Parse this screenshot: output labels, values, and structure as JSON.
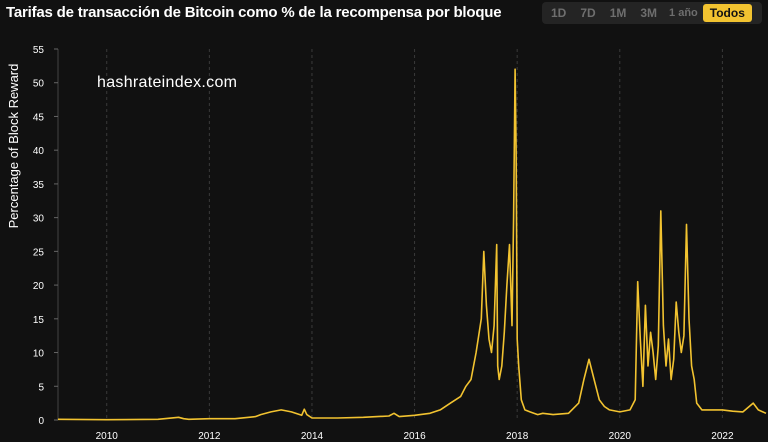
{
  "header": {
    "title": "Tarifas de transacción de Bitcoin como % de la recompensa por bloque",
    "ranges": [
      {
        "label": "1D",
        "active": false
      },
      {
        "label": "7D",
        "active": false
      },
      {
        "label": "1M",
        "active": false
      },
      {
        "label": "3M",
        "active": false
      },
      {
        "label": "1 año",
        "active": false
      },
      {
        "label": "Todos",
        "active": true
      }
    ]
  },
  "watermark": "hashrateindex.com",
  "colors": {
    "background": "#111111",
    "line": "#f2c330",
    "grid": "#3a3a3a",
    "text": "#ffffff",
    "active_button": "#f2c330"
  },
  "chart_data": {
    "type": "line",
    "title": "Tarifas de transacción de Bitcoin como % de la recompensa por bloque",
    "xlabel": "",
    "ylabel": "Percentage of Block Reward",
    "ylim": [
      0,
      55
    ],
    "xlim": [
      2009.05,
      2022.85
    ],
    "x_tick_labels": [
      "2010",
      "2012",
      "2014",
      "2016",
      "2018",
      "2020",
      "2022"
    ],
    "y_tick_labels": [
      "0",
      "5",
      "10",
      "15",
      "20",
      "25",
      "30",
      "35",
      "40",
      "45",
      "50",
      "55"
    ],
    "grid": "vertical-dashed",
    "series": [
      {
        "color": "#f2c330",
        "x": [
          2009.05,
          2010.0,
          2011.0,
          2011.4,
          2011.5,
          2011.6,
          2012.0,
          2012.5,
          2012.9,
          2013.0,
          2013.2,
          2013.4,
          2013.6,
          2013.8,
          2013.85,
          2013.9,
          2014.0,
          2014.5,
          2015.0,
          2015.5,
          2015.6,
          2015.7,
          2016.0,
          2016.3,
          2016.5,
          2016.7,
          2016.9,
          2017.0,
          2017.1,
          2017.2,
          2017.3,
          2017.35,
          2017.4,
          2017.45,
          2017.5,
          2017.55,
          2017.6,
          2017.62,
          2017.65,
          2017.7,
          2017.75,
          2017.8,
          2017.85,
          2017.9,
          2017.93,
          2017.96,
          2017.98,
          2018.0,
          2018.03,
          2018.08,
          2018.15,
          2018.25,
          2018.4,
          2018.5,
          2018.7,
          2019.0,
          2019.2,
          2019.3,
          2019.4,
          2019.5,
          2019.6,
          2019.7,
          2019.8,
          2020.0,
          2020.2,
          2020.3,
          2020.35,
          2020.4,
          2020.45,
          2020.5,
          2020.55,
          2020.6,
          2020.65,
          2020.7,
          2020.75,
          2020.8,
          2020.85,
          2020.9,
          2020.95,
          2021.0,
          2021.05,
          2021.1,
          2021.15,
          2021.2,
          2021.25,
          2021.3,
          2021.35,
          2021.4,
          2021.45,
          2021.5,
          2021.6,
          2021.8,
          2022.0,
          2022.2,
          2022.4,
          2022.6,
          2022.7,
          2022.85
        ],
        "y": [
          0.1,
          0.05,
          0.1,
          0.4,
          0.2,
          0.1,
          0.2,
          0.2,
          0.5,
          0.8,
          1.2,
          1.5,
          1.2,
          0.7,
          1.6,
          0.8,
          0.3,
          0.3,
          0.4,
          0.6,
          1.0,
          0.5,
          0.7,
          1.0,
          1.5,
          2.5,
          3.5,
          5.0,
          6.0,
          10.0,
          15.0,
          25.0,
          17.0,
          12.0,
          10.0,
          14.0,
          26.0,
          8.0,
          6.0,
          8.0,
          13.0,
          20.0,
          26.0,
          14.0,
          30.0,
          52.0,
          40.0,
          12.0,
          8.0,
          3.0,
          1.5,
          1.2,
          0.8,
          1.0,
          0.8,
          1.0,
          2.5,
          6.0,
          9.0,
          6.0,
          3.0,
          2.0,
          1.5,
          1.2,
          1.5,
          3.0,
          20.5,
          12.0,
          5.0,
          17.0,
          8.0,
          13.0,
          10.0,
          6.0,
          11.0,
          31.0,
          14.0,
          8.0,
          12.0,
          6.0,
          9.0,
          17.5,
          13.0,
          10.0,
          12.5,
          29.0,
          15.0,
          8.0,
          6.0,
          2.5,
          1.5,
          1.5,
          1.5,
          1.3,
          1.2,
          2.5,
          1.5,
          1.0
        ]
      }
    ]
  }
}
